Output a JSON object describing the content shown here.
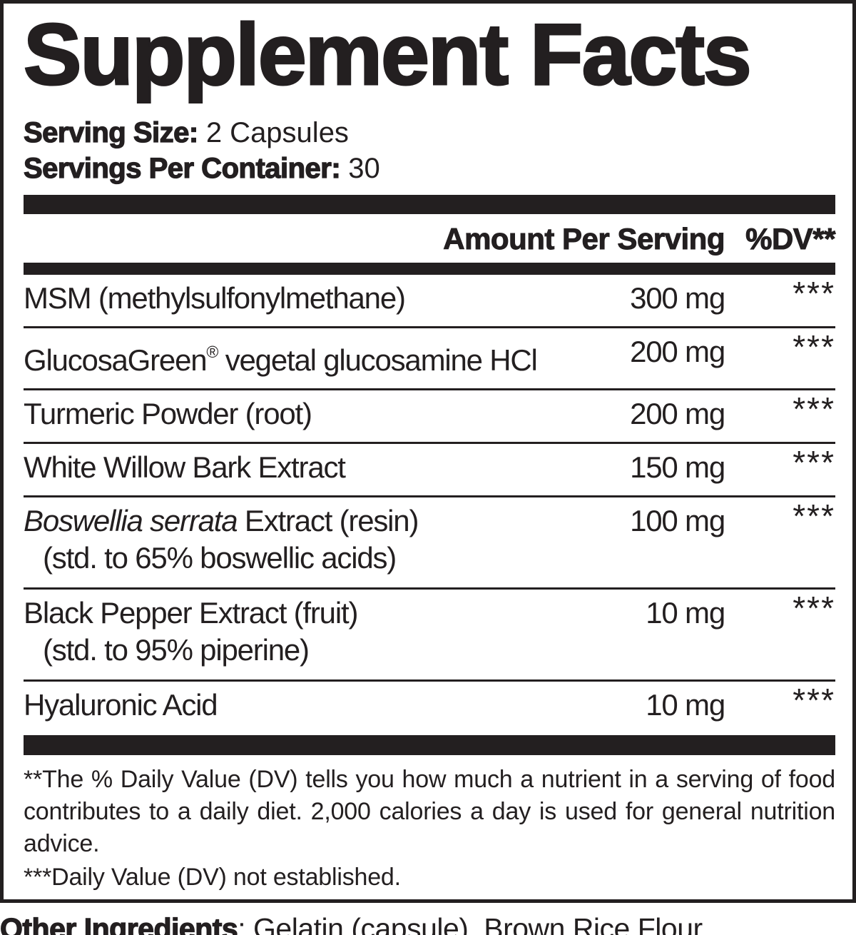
{
  "title": "Supplement Facts",
  "serving": {
    "size_label": "Serving Size:",
    "size_value": " 2 Capsules",
    "per_container_label": "Servings Per Container:",
    "per_container_value": " 30"
  },
  "table": {
    "amount_header": "Amount Per Serving",
    "dv_header": "%DV**",
    "rows": [
      {
        "name": "MSM (methylsulfonylmethane)",
        "amount": "300 mg",
        "dv": "***"
      },
      {
        "name_brand": "GlucosaGreen",
        "name_reg": "®",
        "name_rest": " vegetal glucosamine HCl",
        "amount": "200 mg",
        "dv": "***"
      },
      {
        "name": "Turmeric Powder (root)",
        "amount": "200 mg",
        "dv": "***"
      },
      {
        "name": "White Willow Bark Extract",
        "amount": "150 mg",
        "dv": "***"
      },
      {
        "name_italic": "Boswellia serrata",
        "name_rest": " Extract (resin)",
        "subline": "(std. to 65% boswellic acids)",
        "amount": "100 mg",
        "dv": "***"
      },
      {
        "name": "Black Pepper Extract (fruit)",
        "subline": "(std. to 95% piperine)",
        "amount": "10 mg",
        "dv": "***"
      },
      {
        "name": "Hyaluronic Acid",
        "amount": "10 mg",
        "dv": "***"
      }
    ]
  },
  "footnotes": {
    "dv_note": "**The % Daily Value (DV) tells you how much a nutrient in a serving of food contributes to a daily diet. 2,000 calories a day is used for general nutrition advice.",
    "not_established_note": "***Daily Value (DV) not established."
  },
  "other_ingredients": {
    "label": "Other Ingredients",
    "separator": ": ",
    "value": "Gelatin (capsule), Brown Rice Flour."
  },
  "colors": {
    "text": "#231f20",
    "bar": "#231f20",
    "background": "#ffffff"
  }
}
